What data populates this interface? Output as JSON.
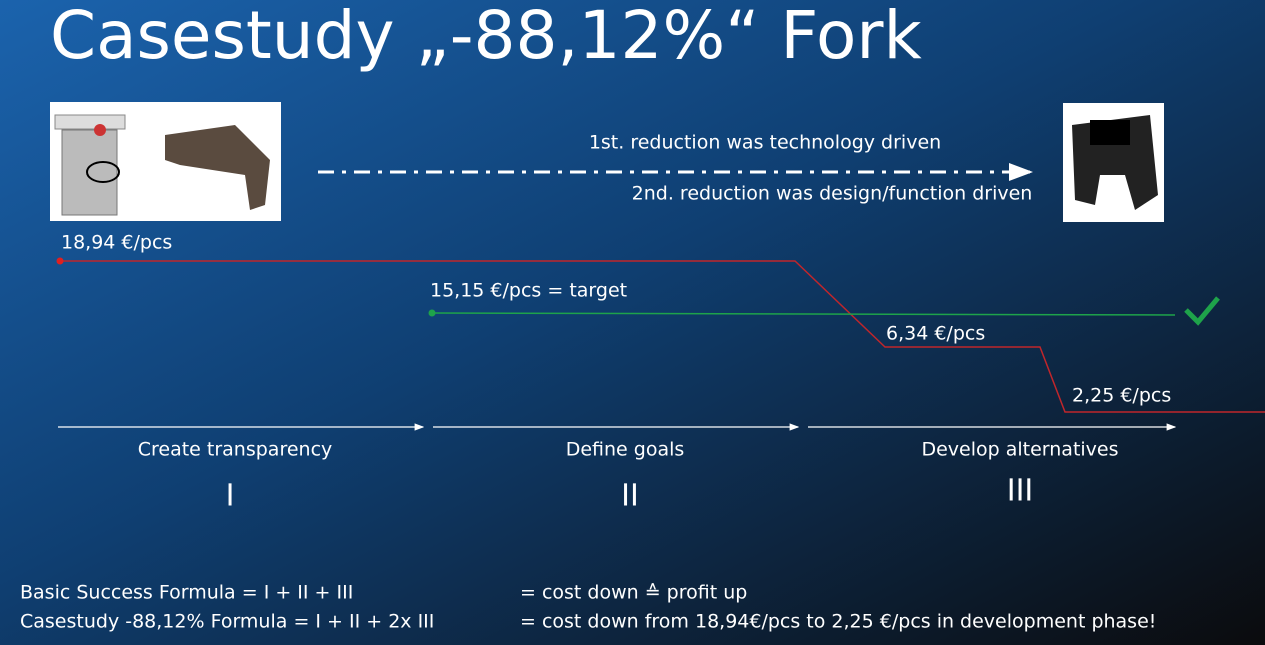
{
  "title": "Casestudy „-88,12%“ Fork",
  "notes": [
    "1st. reduction was technology driven",
    "2nd. reduction was design/function driven"
  ],
  "prices": {
    "start": "18,94 €/pcs",
    "target": "15,15 €/pcs = target",
    "mid": "6,34 €/pcs",
    "end": "2,25 €/pcs"
  },
  "phases": [
    {
      "label": "Create transparency",
      "numeral": "I"
    },
    {
      "label": "Define goals",
      "numeral": "II"
    },
    {
      "label": "Develop alternatives",
      "numeral": "III"
    }
  ],
  "formulas": [
    {
      "left": "Basic Success Formula = I + II + III",
      "right": "= cost down ≙ profit up"
    },
    {
      "left": "Casestudy -88,12% Formula = I + II + 2x III",
      "right": "= cost down from 18,94€/pcs to 2,25 €/pcs in development phase!"
    }
  ]
}
